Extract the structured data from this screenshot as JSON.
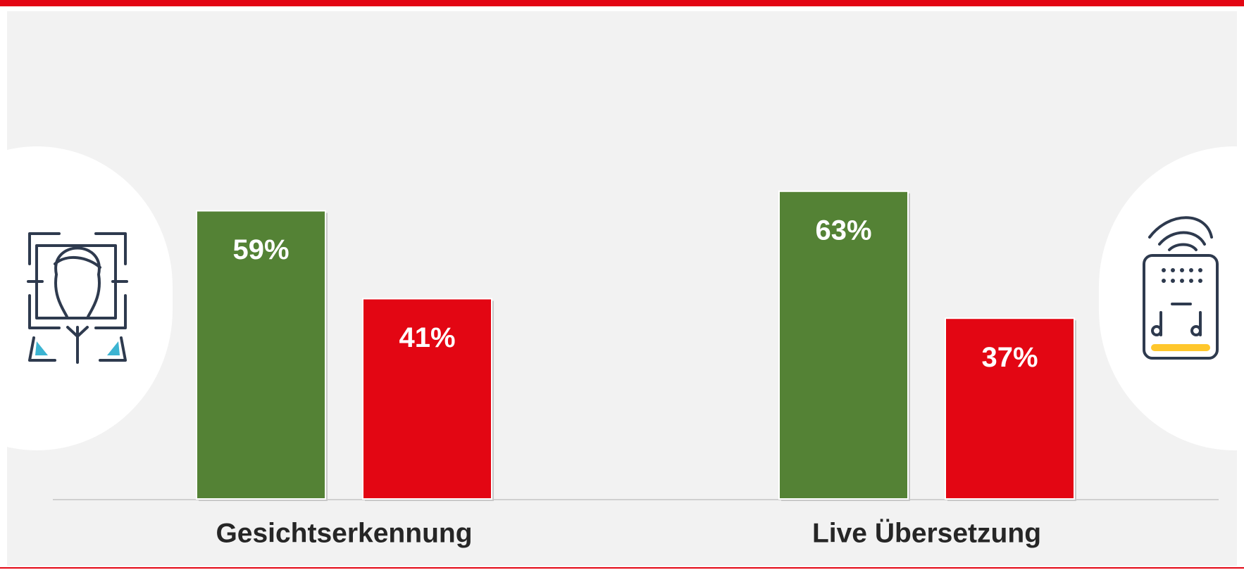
{
  "chart_data": {
    "type": "bar",
    "categories": [
      "Gesichtserkennung",
      "Live Übersetzung"
    ],
    "series": [
      {
        "color": "#548235",
        "values": [
          59,
          63
        ],
        "value_labels": [
          "59%",
          "63%"
        ]
      },
      {
        "color": "#e30613",
        "values": [
          41,
          37
        ],
        "value_labels": [
          "41%",
          "37%"
        ]
      }
    ],
    "ylim": [
      0,
      100
    ]
  }
}
